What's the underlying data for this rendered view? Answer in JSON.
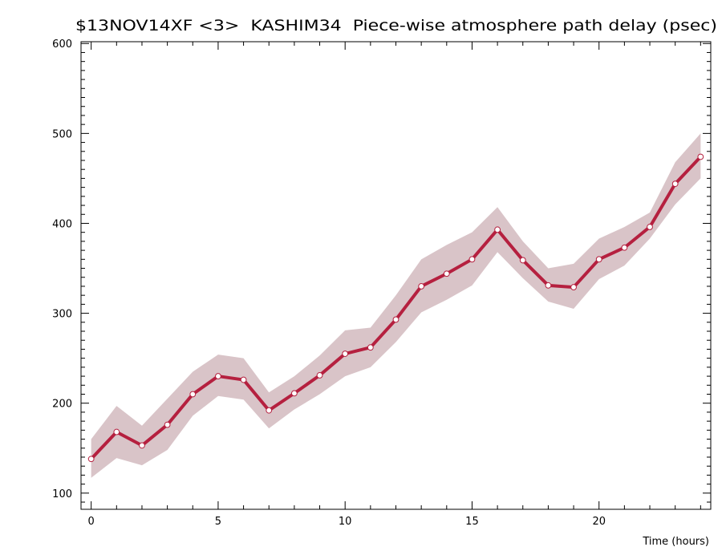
{
  "chart_data": {
    "type": "line",
    "title": "$13NOV14XF <3>  KASHIM34  Piece-wise atmosphere path delay (psec)",
    "xlabel": "Time (hours)",
    "ylabel": "",
    "xlim": [
      -0.4,
      24.4
    ],
    "ylim": [
      82,
      602
    ],
    "xticks_major": [
      0,
      5,
      10,
      15,
      20
    ],
    "yticks_major": [
      100,
      200,
      300,
      400,
      500,
      600
    ],
    "grid": false,
    "colors": {
      "line": "#b5203f",
      "band": "#d9c4c8",
      "marker_fill": "#ffffff"
    },
    "series": [
      {
        "x": [
          0,
          1,
          2,
          3,
          4,
          5,
          6,
          7,
          8,
          9,
          10,
          11,
          12,
          13,
          14,
          15,
          16,
          17,
          18,
          19,
          20,
          21,
          22,
          23,
          24
        ],
        "y": [
          138,
          168,
          153,
          176,
          210,
          230,
          226,
          192,
          211,
          231,
          255,
          262,
          293,
          330,
          344,
          360,
          393,
          359,
          331,
          329,
          360,
          373,
          396,
          444,
          474
        ],
        "lower": [
          117,
          139,
          131,
          148,
          186,
          208,
          204,
          172,
          193,
          210,
          230,
          240,
          268,
          301,
          315,
          331,
          368,
          339,
          313,
          305,
          338,
          353,
          383,
          421,
          450
        ],
        "upper": [
          160,
          197,
          175,
          205,
          235,
          254,
          250,
          212,
          230,
          253,
          281,
          284,
          320,
          360,
          376,
          390,
          418,
          380,
          350,
          355,
          383,
          396,
          412,
          468,
          500
        ]
      }
    ]
  }
}
